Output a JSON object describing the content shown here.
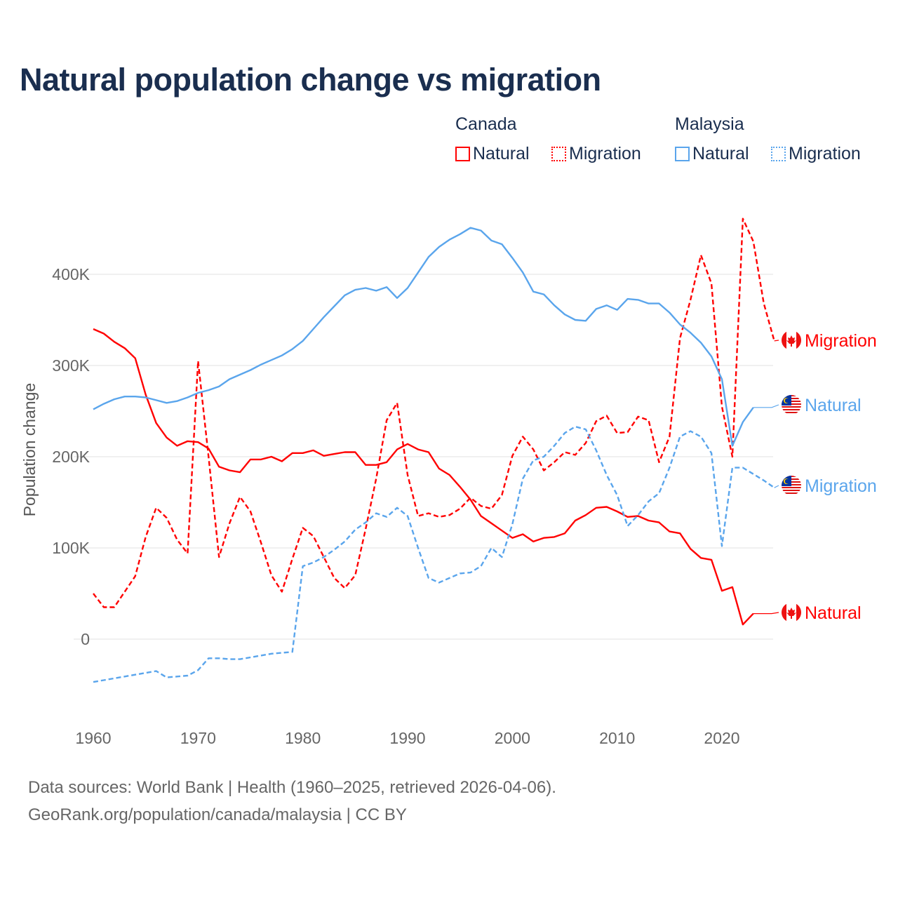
{
  "title": "Natural population change vs migration",
  "legend": {
    "groups": [
      {
        "name": "Canada",
        "items": [
          {
            "label": "Natural",
            "color": "#ff0000",
            "style": "solid"
          },
          {
            "label": "Migration",
            "color": "#ff0000",
            "style": "dotted"
          }
        ]
      },
      {
        "name": "Malaysia",
        "items": [
          {
            "label": "Natural",
            "color": "#5aa5ec",
            "style": "solid"
          },
          {
            "label": "Migration",
            "color": "#5aa5ec",
            "style": "dotted"
          }
        ]
      }
    ]
  },
  "footer": {
    "line1": "Data sources: World Bank | Health (1960–2025, retrieved 2026-04-06).",
    "line2": "GeoRank.org/population/canada/malaysia | CC BY"
  },
  "chart_data": {
    "type": "line",
    "title": "Natural population change vs migration",
    "xlabel": "",
    "ylabel": "Population change",
    "xlim": [
      1960,
      2025
    ],
    "ylim": [
      -75000,
      480000
    ],
    "x_ticks": [
      1960,
      1970,
      1980,
      1990,
      2000,
      2010,
      2020
    ],
    "x_tick_labels": [
      "1960",
      "1970",
      "1980",
      "1990",
      "2000",
      "2010",
      "2020"
    ],
    "y_ticks": [
      0,
      100000,
      200000,
      300000,
      400000
    ],
    "y_tick_labels": [
      "0",
      "100K",
      "200K",
      "300K",
      "400K"
    ],
    "grid": true,
    "legend_position": "top-right",
    "series": [
      {
        "name": "Canada Natural",
        "country": "Canada",
        "end_label": "Natural",
        "color": "#ff0000",
        "dashed": false,
        "start_year": 1960,
        "values": [
          340,
          335,
          326,
          319,
          308,
          268,
          237,
          221,
          212,
          217,
          216,
          209,
          189,
          185,
          183,
          197,
          197,
          200,
          195,
          204,
          204,
          207,
          201,
          203,
          205,
          205,
          191,
          191,
          194,
          208,
          214,
          208,
          205,
          187,
          180,
          167,
          153,
          135,
          127,
          119,
          111,
          115,
          107,
          111,
          112,
          116,
          130,
          136,
          144,
          145,
          140,
          134,
          135,
          130,
          128,
          118,
          116,
          99,
          89,
          87,
          53,
          57,
          16,
          28
        ]
      },
      {
        "name": "Canada Migration",
        "country": "Canada",
        "end_label": "Migration",
        "color": "#ff0000",
        "dashed": true,
        "start_year": 1960,
        "values": [
          50,
          35,
          35,
          52,
          69,
          112,
          144,
          133,
          109,
          94,
          305,
          200,
          90,
          127,
          156,
          140,
          106,
          70,
          52,
          88,
          122,
          113,
          90,
          67,
          56,
          70,
          121,
          176,
          240,
          259,
          180,
          135,
          138,
          134,
          136,
          143,
          155,
          146,
          143,
          158,
          201,
          222,
          208,
          185,
          194,
          205,
          202,
          215,
          239,
          245,
          226,
          227,
          244,
          240,
          194,
          222,
          330,
          372,
          421,
          390,
          255,
          200,
          461,
          436,
          368,
          327
        ]
      },
      {
        "name": "Malaysia Natural",
        "country": "Malaysia",
        "end_label": "Natural",
        "color": "#5aa5ec",
        "dashed": false,
        "start_year": 1960,
        "values": [
          252,
          258,
          263,
          266,
          266,
          265,
          262,
          259,
          261,
          265,
          270,
          273,
          277,
          285,
          290,
          295,
          301,
          306,
          311,
          318,
          327,
          340,
          353,
          365,
          377,
          383,
          385,
          382,
          386,
          374,
          385,
          402,
          419,
          430,
          438,
          444,
          451,
          448,
          437,
          433,
          418,
          402,
          381,
          378,
          366,
          356,
          350,
          349,
          362,
          366,
          361,
          373,
          372,
          368,
          368,
          358,
          345,
          336,
          325,
          310,
          285,
          212,
          238,
          254
        ]
      },
      {
        "name": "Malaysia Migration",
        "country": "Malaysia",
        "end_label": "Migration",
        "color": "#5aa5ec",
        "dashed": true,
        "start_year": 1960,
        "values": [
          -47,
          -45,
          -43,
          -41,
          -39,
          -37,
          -35,
          -42,
          -41,
          -40,
          -34,
          -21,
          -21,
          -22,
          -22,
          -20,
          -18,
          -16,
          -15,
          -14,
          80,
          84,
          90,
          98,
          107,
          120,
          128,
          138,
          134,
          144,
          135,
          100,
          67,
          62,
          67,
          72,
          73,
          80,
          100,
          90,
          126,
          176,
          196,
          200,
          212,
          226,
          233,
          230,
          207,
          180,
          158,
          124,
          136,
          151,
          160,
          188,
          222,
          228,
          222,
          204,
          102,
          188,
          188,
          181,
          174,
          166
        ]
      }
    ],
    "value_unit": "thousands"
  }
}
